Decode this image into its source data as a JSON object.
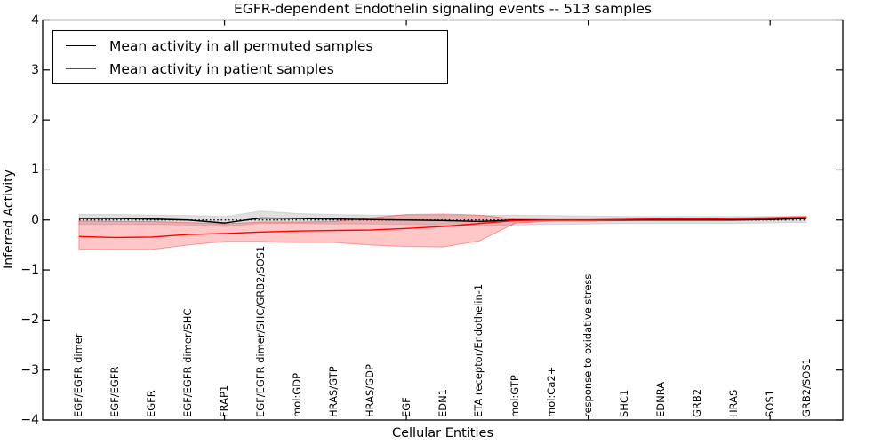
{
  "title": "EGFR-dependent Endothelin signaling events -- 513 samples",
  "legend": {
    "position": "upper left"
  },
  "chart_data": {
    "type": "line",
    "title": "EGFR-dependent Endothelin signaling events -- 513 samples",
    "xlabel": "Cellular Entities",
    "ylabel": "Inferred Activity",
    "ylim": [
      -4,
      4
    ],
    "yticks": [
      {
        "v": 4,
        "label": "4"
      },
      {
        "v": 3,
        "label": "3"
      },
      {
        "v": 2,
        "label": "2"
      },
      {
        "v": 1,
        "label": "1"
      },
      {
        "v": 0,
        "label": "0"
      },
      {
        "v": -1,
        "label": "−1"
      },
      {
        "v": -2,
        "label": "−2"
      },
      {
        "v": -3,
        "label": "−3"
      },
      {
        "v": -4,
        "label": "−4"
      }
    ],
    "xlim_indices": [
      -1,
      21
    ],
    "xtick_indices": [
      4,
      9,
      14,
      19
    ],
    "grid": false,
    "legend_position": "upper left",
    "zero_line": {
      "y": 0,
      "style": "dotted",
      "color": "#000000"
    },
    "categories": [
      "EGF/EGFR dimer",
      "EGF/EGFR",
      "EGFR",
      "EGF/EGFR dimer/SHC",
      "FRAP1",
      "EGF/EGFR dimer/SHC/GRB2/SOS1",
      "mol:GDP",
      "HRAS/GTP",
      "HRAS/GDP",
      "EGF",
      "EDN1",
      "ETA receptor/Endothelin-1",
      "mol:GTP",
      "mol:Ca2+",
      "response to oxidative stress",
      "SHC1",
      "EDNRA",
      "GRB2",
      "HRAS",
      "SOS1",
      "GRB2/SOS1"
    ],
    "series": [
      {
        "name": "Mean activity in all permuted samples",
        "color": "#000000",
        "values": [
          0.03,
          0.03,
          0.02,
          0.0,
          -0.06,
          0.04,
          0.03,
          0.02,
          0.01,
          0.0,
          -0.01,
          -0.03,
          0.0,
          0.0,
          0.0,
          0.0,
          0.0,
          0.0,
          0.0,
          0.01,
          0.03
        ],
        "band": {
          "top": [
            0.11,
            0.11,
            0.1,
            0.09,
            0.07,
            0.18,
            0.13,
            0.11,
            0.1,
            0.1,
            0.1,
            0.09,
            0.1,
            0.09,
            0.08,
            0.07,
            0.07,
            0.07,
            0.07,
            0.07,
            0.08
          ],
          "bottom": [
            -0.09,
            -0.09,
            -0.09,
            -0.1,
            -0.13,
            -0.07,
            -0.07,
            -0.08,
            -0.08,
            -0.09,
            -0.1,
            -0.11,
            -0.1,
            -0.09,
            -0.08,
            -0.07,
            -0.07,
            -0.07,
            -0.07,
            -0.06,
            -0.05
          ],
          "fill_opacity": 0.12,
          "edge_opacity": 0.1
        }
      },
      {
        "name": "Mean activity in patient samples",
        "color": "#ff0000",
        "values": [
          -0.33,
          -0.35,
          -0.34,
          -0.29,
          -0.27,
          -0.24,
          -0.22,
          -0.21,
          -0.2,
          -0.17,
          -0.13,
          -0.07,
          -0.01,
          0.0,
          0.0,
          0.01,
          0.02,
          0.02,
          0.03,
          0.04,
          0.05
        ],
        "band": {
          "top": [
            -0.02,
            -0.03,
            -0.03,
            -0.05,
            -0.08,
            -0.04,
            -0.04,
            -0.03,
            0.04,
            0.11,
            0.12,
            0.1,
            0.02,
            0.01,
            0.01,
            0.02,
            0.03,
            0.04,
            0.04,
            0.05,
            0.07
          ],
          "bottom": [
            -0.58,
            -0.59,
            -0.59,
            -0.5,
            -0.43,
            -0.43,
            -0.45,
            -0.45,
            -0.5,
            -0.53,
            -0.54,
            -0.42,
            -0.06,
            -0.02,
            -0.02,
            -0.01,
            0.0,
            0.0,
            0.01,
            0.02,
            0.03
          ],
          "fill_opacity": 0.22,
          "edge_opacity": 0.35
        }
      }
    ]
  }
}
